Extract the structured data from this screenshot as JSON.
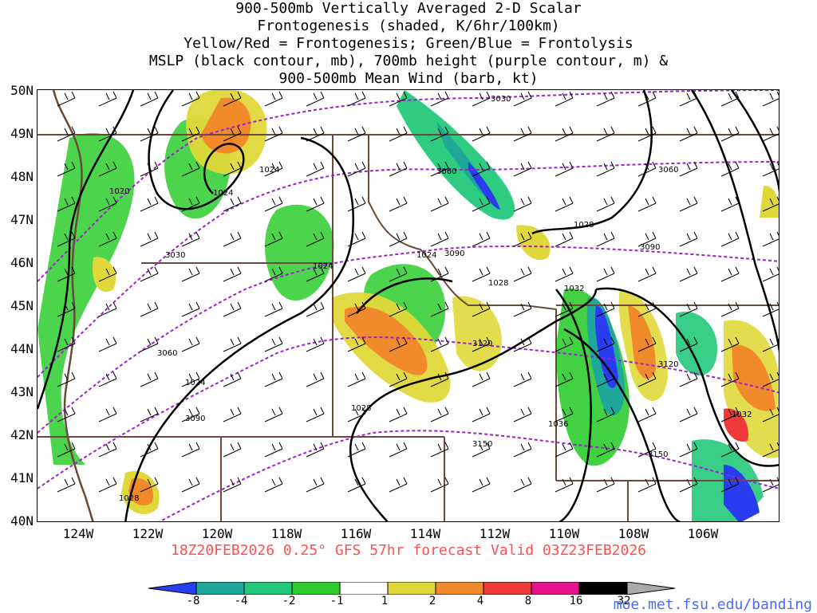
{
  "title_lines": [
    "900-500mb Vertically Averaged 2-D Scalar",
    "Frontogenesis (shaded, K/6hr/100km)",
    "Yellow/Red = Frontogenesis;  Green/Blue = Frontolysis",
    "MSLP (black contour, mb), 700mb height (purple contour, m) &",
    "900-500mb Mean Wind (barb, kt)"
  ],
  "latitude_labels": [
    "50N",
    "49N",
    "48N",
    "47N",
    "46N",
    "45N",
    "44N",
    "43N",
    "42N",
    "41N",
    "40N"
  ],
  "longitude_labels": [
    "124W",
    "122W",
    "120W",
    "118W",
    "116W",
    "114W",
    "112W",
    "110W",
    "108W",
    "106W"
  ],
  "footer": "18Z20FEB2026 0.25° GFS 57hr forecast Valid 03Z23FEB2026",
  "site_credit": "moe.met.fsu.edu/banding",
  "colorbar": {
    "labels": [
      "-8",
      "-4",
      "-2",
      "-1",
      "1",
      "2",
      "4",
      "8",
      "16",
      "32"
    ],
    "colors": [
      "#2a3cf0",
      "#1fa89a",
      "#22c97a",
      "#2ecc2e",
      "#ffffff",
      "#e0d83a",
      "#f08a2a",
      "#f03a3a",
      "#e6148c",
      "#000000",
      "#aaaaaa"
    ]
  },
  "colors": {
    "mslp_contour": "#000000",
    "height_contour": "#a020d0",
    "border": "#6b4a3a",
    "footer_text": "#ff5050",
    "credit_text": "#4a6cf0"
  },
  "mslp_labels": [
    "1020",
    "1024",
    "1024",
    "1024",
    "1024",
    "1024",
    "1028",
    "1028",
    "1028",
    "1028",
    "1032",
    "1032",
    "1036"
  ],
  "height_labels": [
    "3030",
    "3030",
    "3060",
    "3060",
    "3060",
    "3090",
    "3090",
    "3090",
    "3120",
    "3120",
    "3150",
    "3150"
  ]
}
